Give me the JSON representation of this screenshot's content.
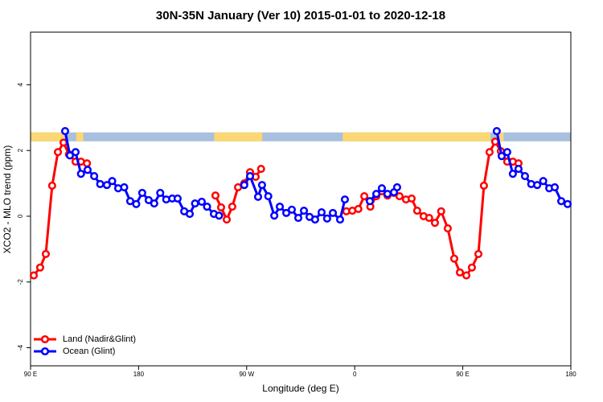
{
  "chart_data": {
    "type": "line",
    "title": "30N-35N January (Ver 10)   2015-01-01 to 2020-12-18",
    "xlabel": "Longitude (deg E)",
    "ylabel": "XCO2 - MLO trend (ppm)",
    "xlim": [
      90,
      540
    ],
    "ylim": [
      -4.55,
      5.6
    ],
    "xticks": [
      {
        "value": 90,
        "label": "90 E"
      },
      {
        "value": 180,
        "label": "180"
      },
      {
        "value": 270,
        "label": "90 W"
      },
      {
        "value": 360,
        "label": "0"
      },
      {
        "value": 450,
        "label": "90 E"
      },
      {
        "value": 540,
        "label": "180"
      }
    ],
    "yticks": [
      -4,
      -2,
      0,
      2,
      4
    ],
    "legend": "bottomleft",
    "band": {
      "ylim": [
        2.28,
        2.55
      ],
      "ocean_color": "#a8bfdd",
      "land_color": "#fbd873",
      "land_ranges": [
        [
          90,
          118
        ],
        [
          128,
          134
        ],
        [
          243,
          283
        ],
        [
          350,
          473
        ],
        [
          478,
          484
        ]
      ]
    },
    "series": [
      {
        "name": "Land (Nadir&Glint)",
        "color": "#ff0000",
        "x": [
          92.7,
          98,
          102.7,
          108,
          112.8,
          117.5,
          122,
          127.5,
          132,
          137,
          null,
          244,
          248.7,
          253.4,
          258,
          262.8,
          268,
          272.8,
          277.5,
          282,
          null,
          353,
          358,
          363,
          368,
          373,
          378,
          382.6,
          387.3,
          392.7,
          397.3,
          402.7,
          407.4,
          412,
          417.4,
          422,
          426.8,
          432,
          437.5,
          442.9,
          447.6,
          453,
          457.6,
          463,
          467.6,
          472.3,
          477,
          481.7,
          487,
          491.7,
          496.4
        ],
        "values": [
          -1.8,
          -1.56,
          -1.15,
          0.93,
          1.95,
          2.24,
          1.88,
          1.66,
          1.66,
          1.61,
          null,
          0.63,
          0.27,
          -0.1,
          0.29,
          0.88,
          1.0,
          1.34,
          1.2,
          1.44,
          null,
          0.15,
          0.17,
          0.22,
          0.61,
          0.29,
          0.61,
          0.76,
          0.63,
          0.71,
          0.61,
          0.51,
          0.54,
          0.17,
          0,
          -0.05,
          -0.2,
          0.15,
          -0.37,
          -1.29,
          -1.71,
          -1.8,
          -1.56,
          -1.15,
          0.93,
          1.95,
          2.27,
          1.98,
          1.66,
          1.66,
          1.61
        ]
      },
      {
        "name": "Ocean (Glint)",
        "color": "#0000ff",
        "x": [
          118.8,
          122.8,
          127.5,
          132,
          137.5,
          143,
          148,
          153.6,
          158,
          163,
          168,
          173,
          178,
          183,
          188.4,
          193,
          198,
          203,
          208,
          212.5,
          218,
          222.6,
          227,
          232.6,
          237,
          242.7,
          247,
          null,
          268,
          272.8,
          279.5,
          282.8,
          288,
          293,
          297.6,
          303,
          307.6,
          313,
          317.7,
          322.4,
          327,
          332.4,
          337,
          341.8,
          347.8,
          351.8,
          null,
          372.6,
          378,
          382.6,
          387.3,
          392.7,
          395.3,
          null,
          478.3,
          482.4,
          487,
          491.7,
          496.4,
          501.8,
          507,
          512,
          517,
          522,
          526.6,
          532,
          537.3
        ],
        "values": [
          2.59,
          1.85,
          1.95,
          1.29,
          1.41,
          1.22,
          0.98,
          0.95,
          1.07,
          0.85,
          0.88,
          0.46,
          0.37,
          0.71,
          0.49,
          0.39,
          0.71,
          0.51,
          0.54,
          0.54,
          0.15,
          0.07,
          0.39,
          0.44,
          0.29,
          0.07,
          0.02,
          null,
          0.95,
          1.22,
          0.59,
          0.95,
          0.61,
          0.02,
          0.29,
          0.1,
          0.2,
          -0.05,
          0.17,
          -0.02,
          -0.1,
          0.12,
          -0.07,
          0.1,
          -0.1,
          0.51,
          null,
          0.46,
          0.68,
          0.85,
          0.68,
          0.73,
          0.88,
          null,
          2.59,
          1.83,
          1.95,
          1.29,
          1.44,
          1.22,
          0.98,
          0.95,
          1.07,
          0.85,
          0.88,
          0.46,
          0.37
        ]
      }
    ]
  }
}
